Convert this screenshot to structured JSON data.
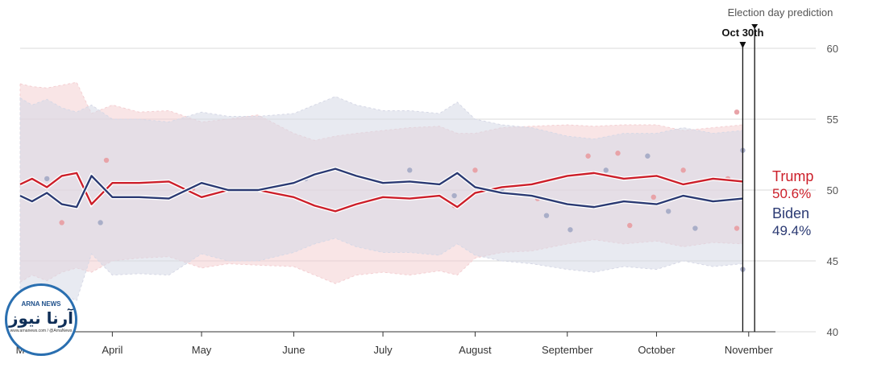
{
  "chart_data": {
    "type": "line",
    "title": "",
    "ylim": [
      40,
      60
    ],
    "y_ticks": [
      40,
      45,
      50,
      55,
      60
    ],
    "x_range": [
      "2020-03-01",
      "2020-11-10"
    ],
    "x_ticks": [
      {
        "label": "M",
        "date": "2020-03-01"
      },
      {
        "label": "April",
        "date": "2020-04-01"
      },
      {
        "label": "May",
        "date": "2020-05-01"
      },
      {
        "label": "June",
        "date": "2020-06-01"
      },
      {
        "label": "July",
        "date": "2020-07-01"
      },
      {
        "label": "August",
        "date": "2020-08-01"
      },
      {
        "label": "September",
        "date": "2020-09-01"
      },
      {
        "label": "October",
        "date": "2020-10-01"
      },
      {
        "label": "November",
        "date": "2020-11-01"
      }
    ],
    "series": [
      {
        "name": "Trump",
        "color": "#cc1f2a",
        "final_value_label": "50.6%",
        "x": [
          "2020-03-01",
          "2020-03-05",
          "2020-03-10",
          "2020-03-15",
          "2020-03-20",
          "2020-03-25",
          "2020-04-01",
          "2020-04-10",
          "2020-04-20",
          "2020-05-01",
          "2020-05-10",
          "2020-05-20",
          "2020-06-01",
          "2020-06-08",
          "2020-06-15",
          "2020-06-22",
          "2020-07-01",
          "2020-07-10",
          "2020-07-20",
          "2020-07-26",
          "2020-08-01",
          "2020-08-10",
          "2020-08-20",
          "2020-09-01",
          "2020-09-10",
          "2020-09-20",
          "2020-10-01",
          "2020-10-10",
          "2020-10-20",
          "2020-10-30"
        ],
        "values": [
          50.4,
          50.8,
          50.2,
          51.0,
          51.2,
          49.0,
          50.5,
          50.5,
          50.6,
          49.5,
          50.0,
          50.0,
          49.5,
          48.9,
          48.5,
          49.0,
          49.5,
          49.4,
          49.6,
          48.8,
          49.8,
          50.2,
          50.4,
          51.0,
          51.2,
          50.8,
          51.0,
          50.4,
          50.8,
          50.6
        ]
      },
      {
        "name": "Biden",
        "color": "#2b3a73",
        "final_value_label": "49.4%",
        "x": [
          "2020-03-01",
          "2020-03-05",
          "2020-03-10",
          "2020-03-15",
          "2020-03-20",
          "2020-03-25",
          "2020-04-01",
          "2020-04-10",
          "2020-04-20",
          "2020-05-01",
          "2020-05-10",
          "2020-05-20",
          "2020-06-01",
          "2020-06-08",
          "2020-06-15",
          "2020-06-22",
          "2020-07-01",
          "2020-07-10",
          "2020-07-20",
          "2020-07-26",
          "2020-08-01",
          "2020-08-10",
          "2020-08-20",
          "2020-09-01",
          "2020-09-10",
          "2020-09-20",
          "2020-10-01",
          "2020-10-10",
          "2020-10-20",
          "2020-10-30"
        ],
        "values": [
          49.6,
          49.2,
          49.8,
          49.0,
          48.8,
          51.0,
          49.5,
          49.5,
          49.4,
          50.5,
          50.0,
          50.0,
          50.5,
          51.1,
          51.5,
          51.0,
          50.5,
          50.6,
          50.4,
          51.2,
          50.2,
          49.8,
          49.6,
          49.0,
          48.8,
          49.2,
          49.0,
          49.6,
          49.2,
          49.4
        ]
      }
    ],
    "bands": [
      {
        "name": "Trump",
        "color": "#f4cfd2",
        "upper": [
          57.5,
          57.3,
          57.2,
          57.4,
          57.6,
          55.4,
          56.0,
          55.5,
          55.6,
          54.8,
          55.0,
          55.3,
          54.0,
          53.5,
          53.8,
          54.0,
          54.2,
          54.4,
          54.5,
          54.0,
          54.0,
          54.4,
          54.5,
          54.6,
          54.5,
          54.6,
          54.6,
          54.2,
          54.4,
          54.6
        ],
        "lower": [
          43.5,
          44.0,
          43.6,
          44.2,
          44.5,
          44.2,
          45.0,
          45.2,
          45.3,
          44.5,
          44.8,
          44.7,
          44.6,
          44.0,
          43.4,
          44.0,
          44.2,
          44.0,
          44.3,
          44.0,
          45.2,
          45.6,
          45.7,
          46.2,
          46.5,
          46.2,
          46.4,
          46.0,
          46.3,
          46.2
        ]
      },
      {
        "name": "Biden",
        "color": "#d6d8e6",
        "upper": [
          56.5,
          56.0,
          56.4,
          55.8,
          55.5,
          56.0,
          55.0,
          55.0,
          54.8,
          55.5,
          55.2,
          55.2,
          55.4,
          56.0,
          56.6,
          56.0,
          55.6,
          55.6,
          55.4,
          56.2,
          55.0,
          54.6,
          54.4,
          53.8,
          53.6,
          54.0,
          54.0,
          54.4,
          54.0,
          54.2
        ],
        "lower": [
          42.6,
          42.4,
          42.8,
          42.6,
          42.2,
          45.5,
          44.0,
          44.1,
          44.0,
          45.5,
          45.0,
          45.0,
          45.6,
          46.2,
          46.6,
          46.0,
          45.6,
          45.6,
          45.4,
          46.2,
          45.4,
          45.0,
          44.8,
          44.4,
          44.2,
          44.6,
          44.4,
          45.0,
          44.6,
          44.8
        ]
      }
    ],
    "polls": [
      {
        "party": "Trump",
        "x": "2020-03-15",
        "y": 47.7
      },
      {
        "party": "Trump",
        "x": "2020-03-30",
        "y": 52.1
      },
      {
        "party": "Trump",
        "x": "2020-04-28",
        "y": 50.1
      },
      {
        "party": "Trump",
        "x": "2020-07-25",
        "y": 48.9
      },
      {
        "party": "Trump",
        "x": "2020-08-01",
        "y": 51.4
      },
      {
        "party": "Trump",
        "x": "2020-08-22",
        "y": 49.4
      },
      {
        "party": "Trump",
        "x": "2020-09-08",
        "y": 52.4
      },
      {
        "party": "Trump",
        "x": "2020-09-18",
        "y": 52.6
      },
      {
        "party": "Trump",
        "x": "2020-09-22",
        "y": 47.5
      },
      {
        "party": "Trump",
        "x": "2020-09-30",
        "y": 49.5
      },
      {
        "party": "Trump",
        "x": "2020-10-10",
        "y": 51.4
      },
      {
        "party": "Trump",
        "x": "2020-10-25",
        "y": 50.8
      },
      {
        "party": "Trump",
        "x": "2020-10-28",
        "y": 55.5
      },
      {
        "party": "Trump",
        "x": "2020-10-28",
        "y": 47.3
      },
      {
        "party": "Biden",
        "x": "2020-03-10",
        "y": 50.8
      },
      {
        "party": "Biden",
        "x": "2020-03-28",
        "y": 47.7
      },
      {
        "party": "Biden",
        "x": "2020-06-05",
        "y": 50.8
      },
      {
        "party": "Biden",
        "x": "2020-07-10",
        "y": 51.4
      },
      {
        "party": "Biden",
        "x": "2020-07-25",
        "y": 49.6
      },
      {
        "party": "Biden",
        "x": "2020-08-10",
        "y": 50.1
      },
      {
        "party": "Biden",
        "x": "2020-08-25",
        "y": 48.2
      },
      {
        "party": "Biden",
        "x": "2020-09-02",
        "y": 47.2
      },
      {
        "party": "Biden",
        "x": "2020-09-14",
        "y": 51.4
      },
      {
        "party": "Biden",
        "x": "2020-09-28",
        "y": 52.4
      },
      {
        "party": "Biden",
        "x": "2020-10-05",
        "y": 48.5
      },
      {
        "party": "Biden",
        "x": "2020-10-14",
        "y": 47.3
      },
      {
        "party": "Biden",
        "x": "2020-10-30",
        "y": 52.8
      },
      {
        "party": "Biden",
        "x": "2020-10-30",
        "y": 44.4
      }
    ],
    "annotations": {
      "election_day_label": "Election day prediction",
      "current_date_label": "Oct 30th",
      "current_date": "2020-10-30",
      "election_date": "2020-11-03"
    }
  },
  "watermark": {
    "brand_en": "ARNA NEWS",
    "brand_fa": "آرنا نیوز",
    "website": "www.arnanews.com / @ArnaNews"
  }
}
